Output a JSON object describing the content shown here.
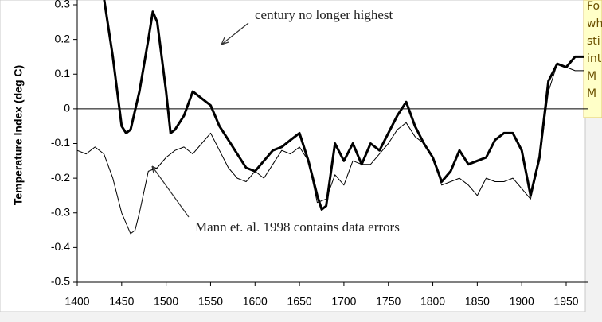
{
  "chart_data": {
    "type": "line",
    "ylabel": "Temperature Index (deg C)",
    "annotations": [
      "century no longer highest",
      "Mann et. al. 1998 contains data errors"
    ],
    "side_note": [
      "Fo",
      "wh",
      "sti",
      "int",
      "M",
      "M"
    ],
    "xlim": [
      1400,
      1975
    ],
    "xticks": [
      1400,
      1450,
      1500,
      1550,
      1600,
      1650,
      1700,
      1750,
      1800,
      1850,
      1900,
      1950
    ],
    "ylim": [
      -0.5,
      0.3
    ],
    "yticks": [
      0.3,
      0.2,
      0.1,
      0,
      -0.1,
      -0.2,
      -0.3,
      -0.4,
      -0.5
    ],
    "series": [
      {
        "color": "#000000",
        "width": 1,
        "x": [
          1400,
          1410,
          1420,
          1430,
          1440,
          1450,
          1460,
          1465,
          1470,
          1480,
          1490,
          1500,
          1510,
          1520,
          1530,
          1540,
          1550,
          1560,
          1570,
          1580,
          1590,
          1600,
          1610,
          1620,
          1630,
          1640,
          1650,
          1660,
          1670,
          1680,
          1690,
          1700,
          1710,
          1720,
          1730,
          1740,
          1750,
          1760,
          1770,
          1780,
          1790,
          1800,
          1810,
          1820,
          1830,
          1840,
          1850,
          1860,
          1870,
          1880,
          1890,
          1900,
          1910,
          1920,
          1930,
          1940,
          1950,
          1960,
          1970
        ],
        "values": [
          -0.12,
          -0.13,
          -0.11,
          -0.13,
          -0.2,
          -0.3,
          -0.36,
          -0.35,
          -0.3,
          -0.18,
          -0.17,
          -0.14,
          -0.12,
          -0.11,
          -0.13,
          -0.1,
          -0.07,
          -0.12,
          -0.17,
          -0.2,
          -0.21,
          -0.18,
          -0.2,
          -0.16,
          -0.12,
          -0.13,
          -0.11,
          -0.15,
          -0.27,
          -0.26,
          -0.19,
          -0.22,
          -0.15,
          -0.16,
          -0.16,
          -0.13,
          -0.1,
          -0.06,
          -0.04,
          -0.08,
          -0.1,
          -0.14,
          -0.22,
          -0.21,
          -0.2,
          -0.22,
          -0.25,
          -0.2,
          -0.21,
          -0.21,
          -0.2,
          -0.23,
          -0.26,
          -0.15,
          0.05,
          0.13,
          0.12,
          0.11,
          0.11
        ]
      },
      {
        "color": "#000000",
        "width": 3,
        "x": [
          1430,
          1440,
          1450,
          1455,
          1460,
          1470,
          1480,
          1485,
          1490,
          1500,
          1505,
          1510,
          1520,
          1530,
          1540,
          1550,
          1560,
          1570,
          1580,
          1590,
          1600,
          1610,
          1620,
          1630,
          1640,
          1650,
          1660,
          1670,
          1675,
          1680,
          1690,
          1700,
          1710,
          1720,
          1730,
          1740,
          1750,
          1760,
          1770,
          1780,
          1790,
          1800,
          1810,
          1820,
          1830,
          1840,
          1850,
          1860,
          1870,
          1880,
          1890,
          1900,
          1910,
          1920,
          1930,
          1940,
          1950,
          1960,
          1970
        ],
        "values": [
          0.32,
          0.15,
          -0.05,
          -0.07,
          -0.06,
          0.05,
          0.2,
          0.28,
          0.25,
          0.05,
          -0.07,
          -0.06,
          -0.02,
          0.05,
          0.03,
          0.01,
          -0.05,
          -0.09,
          -0.13,
          -0.17,
          -0.18,
          -0.15,
          -0.12,
          -0.11,
          -0.09,
          -0.07,
          -0.15,
          -0.25,
          -0.29,
          -0.28,
          -0.1,
          -0.15,
          -0.1,
          -0.16,
          -0.1,
          -0.12,
          -0.07,
          -0.02,
          0.02,
          -0.05,
          -0.1,
          -0.14,
          -0.21,
          -0.18,
          -0.12,
          -0.16,
          -0.15,
          -0.14,
          -0.09,
          -0.07,
          -0.07,
          -0.12,
          -0.25,
          -0.14,
          0.08,
          0.13,
          0.12,
          0.15,
          0.15
        ]
      }
    ]
  }
}
